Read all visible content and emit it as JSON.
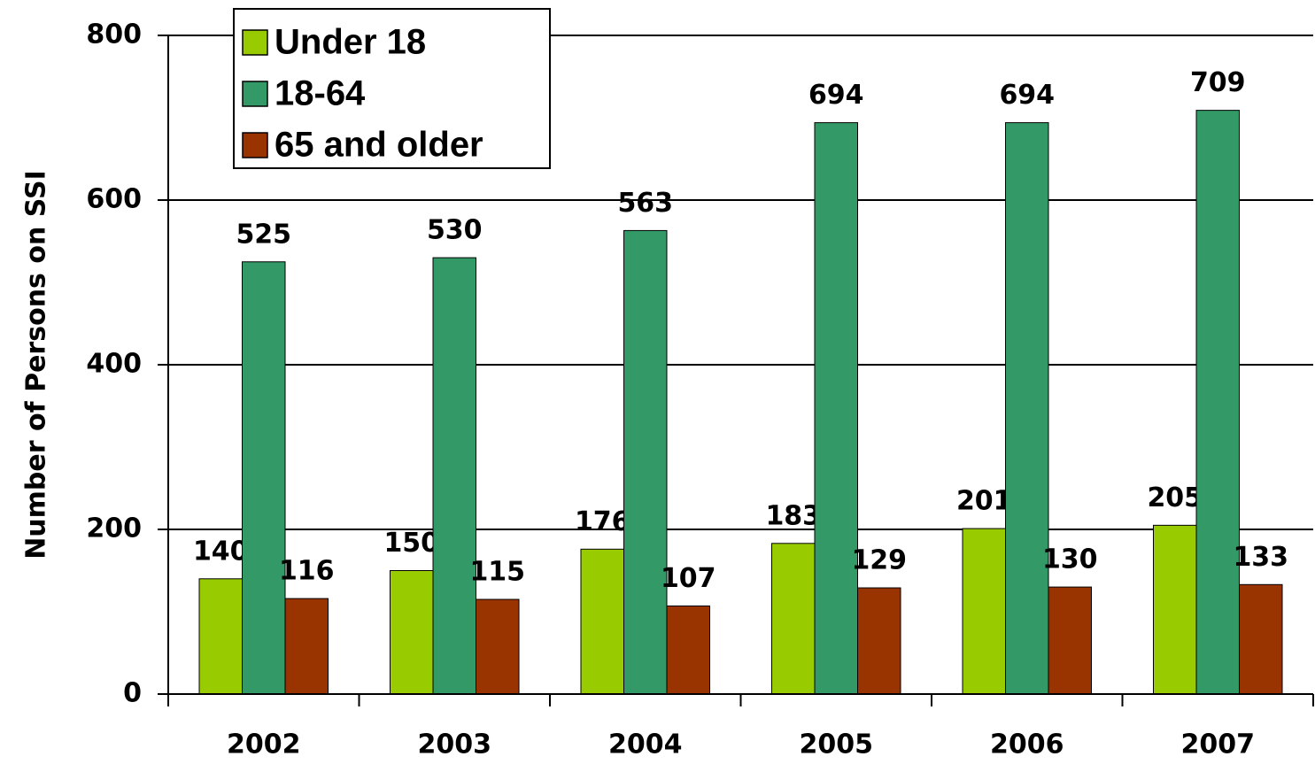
{
  "chart_data": {
    "type": "bar",
    "y_label": "Number of Persons on SSI",
    "categories": [
      "2002",
      "2003",
      "2004",
      "2005",
      "2006",
      "2007"
    ],
    "series": [
      {
        "name": "Under 18",
        "color": "#99cc00",
        "values": [
          140,
          150,
          176,
          183,
          201,
          205
        ]
      },
      {
        "name": "18-64",
        "color": "#339966",
        "values": [
          525,
          530,
          563,
          694,
          694,
          709
        ]
      },
      {
        "name": "65 and older",
        "color": "#993300",
        "values": [
          116,
          115,
          107,
          129,
          130,
          133
        ]
      }
    ],
    "ylim": [
      0,
      800
    ],
    "yticks": [
      0,
      200,
      400,
      600,
      800
    ],
    "grid": true,
    "legend": "upper left"
  }
}
